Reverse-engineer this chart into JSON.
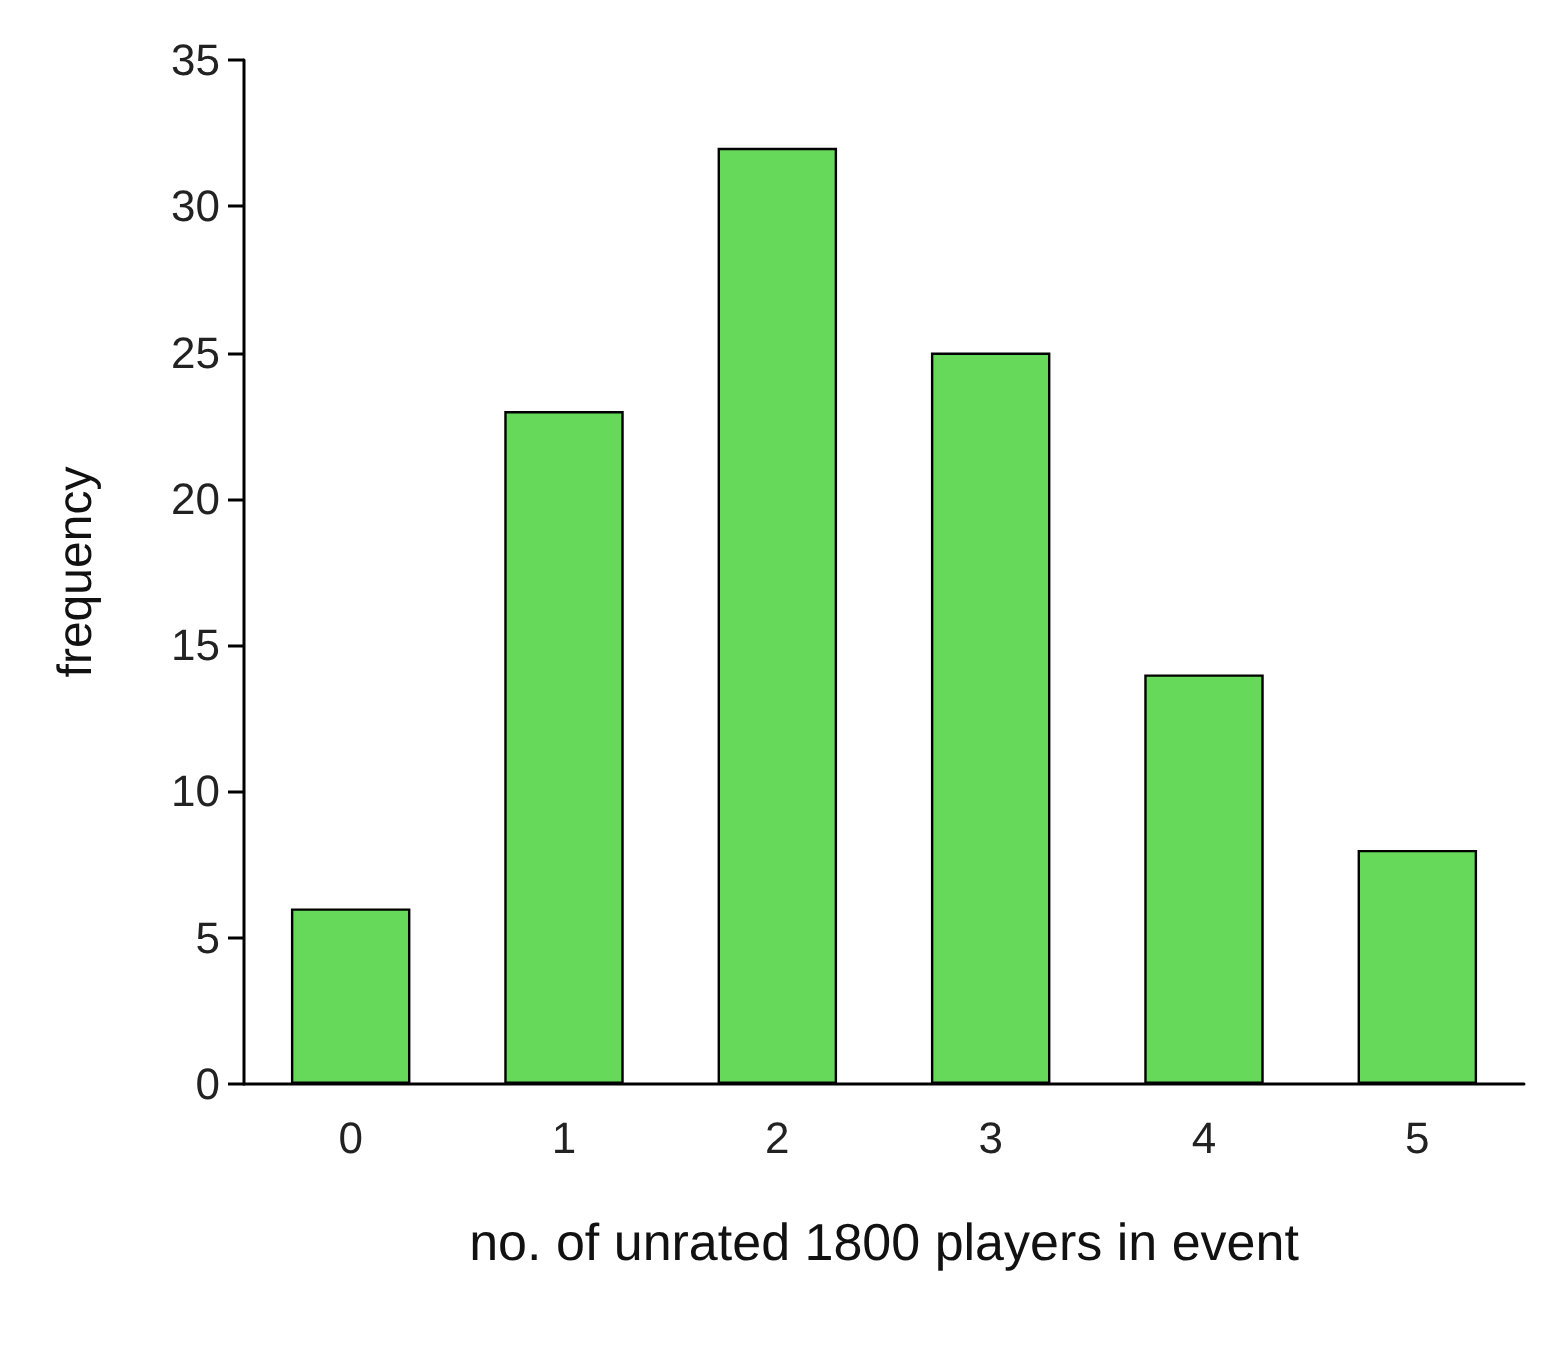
{
  "chart_data": {
    "type": "bar",
    "xlabel": "no. of unrated 1800 players in event",
    "ylabel": "frequency",
    "categories": [
      "0",
      "1",
      "2",
      "3",
      "4",
      "5"
    ],
    "values": [
      6,
      23,
      32,
      25,
      14,
      8
    ],
    "color": "#66d95a",
    "ylim": [
      0,
      35
    ],
    "yticks": [
      0,
      5,
      10,
      15,
      20,
      25,
      30,
      35
    ],
    "grid": false
  }
}
